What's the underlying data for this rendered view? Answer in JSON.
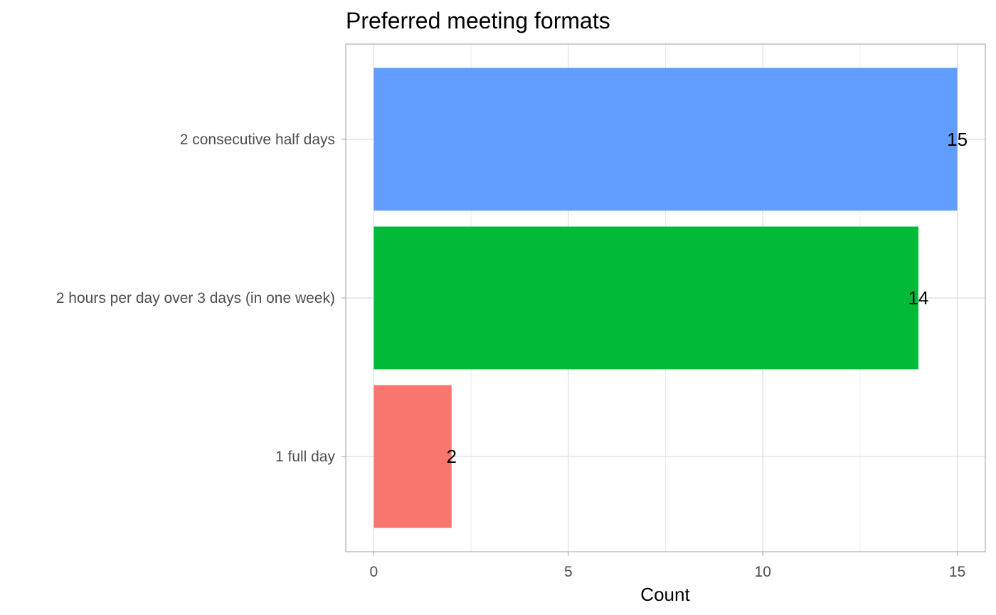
{
  "chart_data": {
    "type": "bar",
    "orientation": "horizontal",
    "title": "Preferred meeting formats",
    "xlabel": "Count",
    "ylabel": "",
    "categories": [
      "1 full day",
      "2 hours per day over 3 days (in one week)",
      "2 consecutive half days"
    ],
    "values": [
      2,
      14,
      15
    ],
    "data_labels": [
      "2",
      "14",
      "15"
    ],
    "colors": [
      "#F8766D",
      "#00BA38",
      "#619CFF"
    ],
    "xlim": [
      -0.72,
      15.72
    ],
    "xticks": [
      0,
      5,
      10,
      15
    ],
    "xtick_labels": [
      "0",
      "5",
      "10",
      "15"
    ],
    "grid": true,
    "legend": "none"
  }
}
